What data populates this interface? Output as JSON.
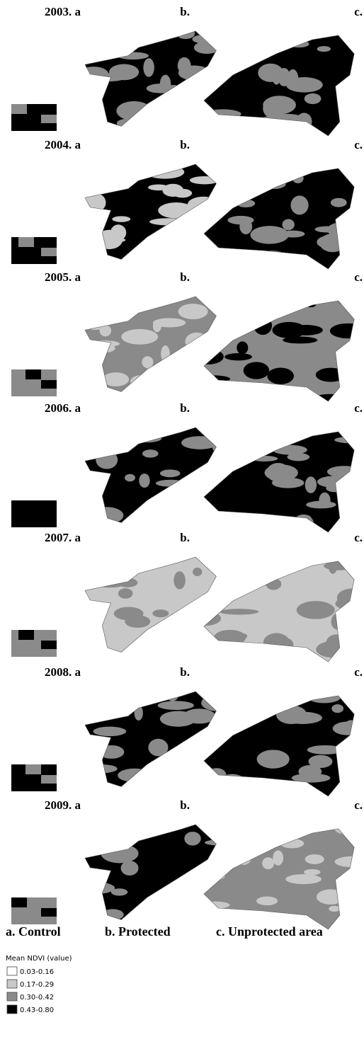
{
  "rows": [
    {
      "label_a": "2003. a",
      "label_b": "b.",
      "label_c": "c."
    },
    {
      "label_a": "2004. a",
      "label_b": "b.",
      "label_c": "c."
    },
    {
      "label_a": "2005. a",
      "label_b": "b.",
      "label_c": "c."
    },
    {
      "label_a": "2006. a",
      "label_b": "b.",
      "label_c": "c."
    },
    {
      "label_a": "2007. a",
      "label_b": "b.",
      "label_c": "c."
    },
    {
      "label_a": "2008. a",
      "label_b": "b.",
      "label_c": "c."
    },
    {
      "label_a": "2009. a",
      "label_b": "b.",
      "label_c": "c."
    }
  ],
  "captions": [
    "a. Control",
    "b. Protected",
    "c. Unprotected area"
  ],
  "legend": {
    "title": "Mean NDVI (value)",
    "items": [
      {
        "label": "0.03-0.16",
        "color": "#ffffff"
      },
      {
        "label": "0.17-0.29",
        "color": "#c8c8c8"
      },
      {
        "label": "0.30-0.42",
        "color": "#8a8a8a"
      },
      {
        "label": "0.43-0.80",
        "color": "#000000"
      }
    ]
  }
}
